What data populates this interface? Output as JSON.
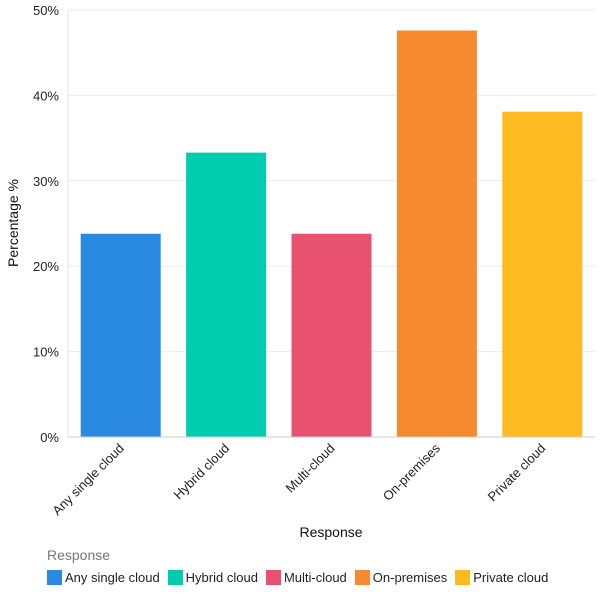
{
  "chart_data": {
    "type": "bar",
    "title": "",
    "xlabel": "Response",
    "ylabel": "Percentage %",
    "ylim": [
      0,
      50
    ],
    "yticks": [
      "0%",
      "10%",
      "20%",
      "30%",
      "40%",
      "50%"
    ],
    "ytick_values": [
      0,
      10,
      20,
      30,
      40,
      50
    ],
    "grid": true,
    "categories": [
      "Any single cloud",
      "Hybrid cloud",
      "Multi-cloud",
      "On-premises",
      "Private cloud"
    ],
    "values": [
      23.8,
      33.3,
      23.8,
      47.6,
      38.1
    ],
    "colors": [
      "#2a8ae2",
      "#00cdb0",
      "#e8516f",
      "#f78a2e",
      "#fdbb21"
    ],
    "legend": {
      "title": "Response",
      "placement": "bottom-left",
      "entries": [
        "Any single cloud",
        "Hybrid cloud",
        "Multi-cloud",
        "On-premises",
        "Private cloud"
      ]
    }
  }
}
